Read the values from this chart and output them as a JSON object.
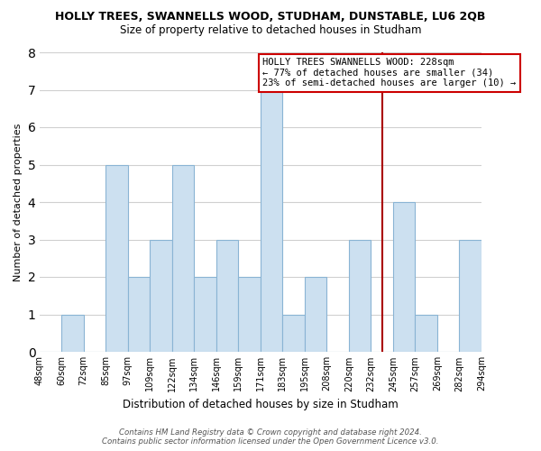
{
  "title": "HOLLY TREES, SWANNELLS WOOD, STUDHAM, DUNSTABLE, LU6 2QB",
  "subtitle": "Size of property relative to detached houses in Studham",
  "xlabel": "Distribution of detached houses by size in Studham",
  "ylabel": "Number of detached properties",
  "bin_labels": [
    "48sqm",
    "60sqm",
    "72sqm",
    "85sqm",
    "97sqm",
    "109sqm",
    "122sqm",
    "134sqm",
    "146sqm",
    "159sqm",
    "171sqm",
    "183sqm",
    "195sqm",
    "208sqm",
    "220sqm",
    "232sqm",
    "245sqm",
    "257sqm",
    "269sqm",
    "282sqm",
    "294sqm"
  ],
  "bar_heights": [
    0,
    1,
    0,
    5,
    2,
    3,
    5,
    2,
    3,
    2,
    7,
    1,
    2,
    0,
    3,
    0,
    4,
    1,
    0,
    3
  ],
  "bar_color": "#cce0f0",
  "bar_edge_color": "#8ab4d4",
  "grid_color": "#d0d0d0",
  "vline_pos": 15.5,
  "vline_color": "#aa0000",
  "annotation_title": "HOLLY TREES SWANNELLS WOOD: 228sqm",
  "annotation_line1": "← 77% of detached houses are smaller (34)",
  "annotation_line2": "23% of semi-detached houses are larger (10) →",
  "annotation_box_color": "#ffffff",
  "annotation_box_edge": "#cc0000",
  "ylim": [
    0,
    8
  ],
  "yticks": [
    0,
    1,
    2,
    3,
    4,
    5,
    6,
    7,
    8
  ],
  "footnote1": "Contains HM Land Registry data © Crown copyright and database right 2024.",
  "footnote2": "Contains public sector information licensed under the Open Government Licence v3.0."
}
